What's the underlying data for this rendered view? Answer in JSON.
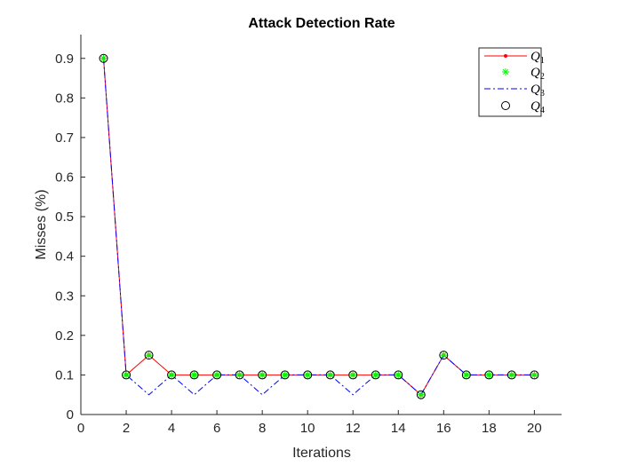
{
  "chart_data": {
    "type": "line",
    "title": "Attack Detection Rate",
    "xlabel": "Iterations",
    "ylabel": "Misses (%)",
    "xlim": [
      0,
      21.2
    ],
    "ylim": [
      0,
      0.96
    ],
    "xticks": [
      0,
      2,
      4,
      6,
      8,
      10,
      12,
      14,
      16,
      18,
      20
    ],
    "yticks": [
      0,
      0.1,
      0.2,
      0.3,
      0.4,
      0.5,
      0.6,
      0.7,
      0.8,
      0.9
    ],
    "ytick_labels": [
      "0",
      "0.1",
      "0.2",
      "0.3",
      "0.4",
      "0.5",
      "0.6",
      "0.7",
      "0.8",
      "0.9"
    ],
    "x": [
      1,
      2,
      3,
      4,
      5,
      6,
      7,
      8,
      9,
      10,
      11,
      12,
      13,
      14,
      15,
      16,
      17,
      18,
      19,
      20
    ],
    "grid": false,
    "legend_position": "top-right",
    "series": [
      {
        "name": "Q",
        "subscript": "1",
        "color": "#ff0000",
        "style": "solid-line-dot",
        "values": [
          0.9,
          0.1,
          0.15,
          0.1,
          0.1,
          0.1,
          0.1,
          0.1,
          0.1,
          0.1,
          0.1,
          0.1,
          0.1,
          0.1,
          0.05,
          0.15,
          0.1,
          0.1,
          0.1,
          0.1
        ]
      },
      {
        "name": "Q",
        "subscript": "2",
        "color": "#00ff00",
        "style": "asterisk",
        "values": [
          0.9,
          0.1,
          0.15,
          0.1,
          0.1,
          0.1,
          0.1,
          0.1,
          0.1,
          0.1,
          0.1,
          0.1,
          0.1,
          0.1,
          0.05,
          0.15,
          0.1,
          0.1,
          0.1,
          0.1
        ]
      },
      {
        "name": "Q",
        "subscript": "3",
        "color": "#0000ff",
        "style": "dash-dot-line",
        "values": [
          0.9,
          0.1,
          0.05,
          0.1,
          0.05,
          0.1,
          0.1,
          0.05,
          0.1,
          0.1,
          0.1,
          0.05,
          0.1,
          0.1,
          0.05,
          0.15,
          0.1,
          0.1,
          0.1,
          0.1
        ]
      },
      {
        "name": "Q",
        "subscript": "4",
        "color": "#000000",
        "style": "circle",
        "values": [
          0.9,
          0.1,
          0.15,
          0.1,
          0.1,
          0.1,
          0.1,
          0.1,
          0.1,
          0.1,
          0.1,
          0.1,
          0.1,
          0.1,
          0.05,
          0.15,
          0.1,
          0.1,
          0.1,
          0.1
        ]
      }
    ]
  }
}
